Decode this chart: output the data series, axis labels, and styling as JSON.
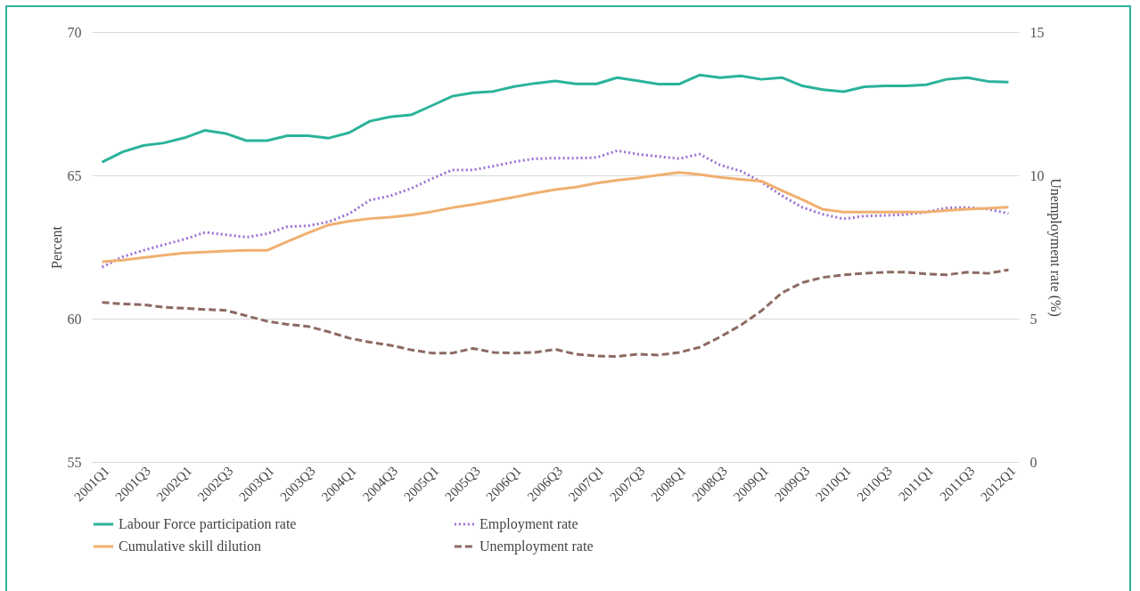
{
  "chart_data": {
    "type": "line",
    "ylabel": "Percent",
    "y2label": "Unemployment rate (%)",
    "categories": [
      "2001Q1",
      null,
      "2001Q3",
      null,
      "2002Q1",
      null,
      "2002Q3",
      null,
      "2003Q1",
      null,
      "2003Q3",
      null,
      "2004Q1",
      null,
      "2004Q3",
      null,
      "2005Q1",
      null,
      "2005Q3",
      null,
      "2006Q1",
      null,
      "2006Q3",
      null,
      "2007Q1",
      null,
      "2007Q3",
      null,
      "2008Q1",
      null,
      "2008Q3",
      null,
      "2009Q1",
      null,
      "2009Q3",
      null,
      "2010Q1",
      null,
      "2010Q3",
      null,
      "2011Q1",
      null,
      "2011Q3",
      null,
      "2012Q1"
    ],
    "series": [
      {
        "name": "Labour Force participation rate",
        "color": "#2bb39a",
        "line_style": "solid",
        "values": [
          65.46,
          65.82,
          66.04,
          66.13,
          66.31,
          66.57,
          66.46,
          66.21,
          66.21,
          66.38,
          66.38,
          66.3,
          66.49,
          66.89,
          67.04,
          67.11,
          67.43,
          67.76,
          67.88,
          67.93,
          68.1,
          68.21,
          68.29,
          68.19,
          68.19,
          68.41,
          68.3,
          68.18,
          68.18,
          68.5,
          68.41,
          68.47,
          68.35,
          68.41,
          68.12,
          67.99,
          67.92,
          68.09,
          68.12,
          68.12,
          68.16,
          68.35,
          68.41,
          68.28,
          68.25
        ]
      },
      {
        "name": "Employment  rate",
        "color": "#9b6fd6",
        "line_style": "dotted",
        "values": [
          61.8,
          62.16,
          62.38,
          62.58,
          62.77,
          63.01,
          62.93,
          62.84,
          62.96,
          63.21,
          63.24,
          63.38,
          63.66,
          64.13,
          64.29,
          64.54,
          64.88,
          65.19,
          65.19,
          65.32,
          65.47,
          65.58,
          65.6,
          65.6,
          65.62,
          65.86,
          65.74,
          65.66,
          65.58,
          65.74,
          65.36,
          65.15,
          64.77,
          64.29,
          63.88,
          63.64,
          63.48,
          63.58,
          63.6,
          63.63,
          63.72,
          63.86,
          63.88,
          63.82,
          63.67
        ]
      },
      {
        "name": "Cumulative skill dilution",
        "color": "#f0b070",
        "line_style": "solid",
        "values": [
          61.99,
          62.04,
          62.13,
          62.21,
          62.29,
          62.32,
          62.36,
          62.38,
          62.38,
          62.69,
          62.99,
          63.27,
          63.4,
          63.49,
          63.54,
          63.62,
          63.73,
          63.87,
          63.98,
          64.11,
          64.24,
          64.38,
          64.5,
          64.59,
          64.73,
          64.83,
          64.91,
          65.01,
          65.1,
          65.03,
          64.93,
          64.86,
          64.8,
          64.47,
          64.15,
          63.81,
          63.72,
          63.72,
          63.72,
          63.72,
          63.72,
          63.77,
          63.82,
          63.85,
          63.89
        ]
      },
      {
        "name": "Unemployment rate",
        "color": "#8c6a62",
        "line_style": "dashed",
        "axis": "y2",
        "values": [
          5.57,
          5.51,
          5.49,
          5.4,
          5.36,
          5.32,
          5.29,
          5.1,
          4.91,
          4.8,
          4.73,
          4.54,
          4.32,
          4.18,
          4.07,
          3.91,
          3.8,
          3.8,
          3.96,
          3.82,
          3.8,
          3.82,
          3.93,
          3.76,
          3.7,
          3.68,
          3.76,
          3.73,
          3.82,
          4.0,
          4.36,
          4.77,
          5.27,
          5.9,
          6.26,
          6.44,
          6.53,
          6.58,
          6.62,
          6.62,
          6.56,
          6.53,
          6.62,
          6.58,
          6.7
        ]
      }
    ],
    "ylim": [
      55,
      70
    ],
    "yticks": [
      55,
      60,
      65,
      70
    ],
    "y2lim": [
      0,
      15
    ],
    "y2ticks": [
      0,
      5,
      10,
      15
    ],
    "grid": "y",
    "legend": "bottom"
  }
}
